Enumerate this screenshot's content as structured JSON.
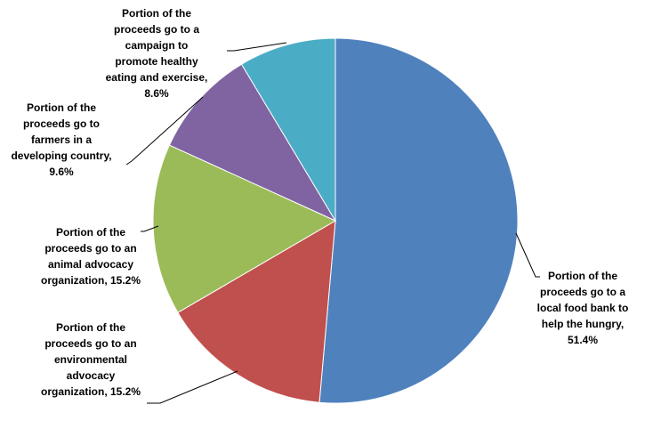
{
  "chart_data": {
    "type": "pie",
    "title": "",
    "slices": [
      {
        "label": "Portion of the proceeds go to a local food bank to help the hungry",
        "value": 51.4,
        "value_label": "51.4%",
        "color": "#4F81BD"
      },
      {
        "label": "Portion of the proceeds go to an environmental advocacy organization",
        "value": 15.2,
        "value_label": "15.2%",
        "color": "#C0504D"
      },
      {
        "label": "Portion of the proceeds go to an animal advocacy organization",
        "value": 15.2,
        "value_label": "15.2%",
        "color": "#9BBB59"
      },
      {
        "label": "Portion of the proceeds go to farmers in a developing country",
        "value": 9.6,
        "value_label": "9.6%",
        "color": "#8064A2"
      },
      {
        "label": "Portion of the proceeds go to a campaign to promote healthy eating and exercise",
        "value": 8.6,
        "value_label": "8.6%",
        "color": "#4BACC6"
      }
    ],
    "legend": "none",
    "data_labels": "outside with leader lines"
  }
}
